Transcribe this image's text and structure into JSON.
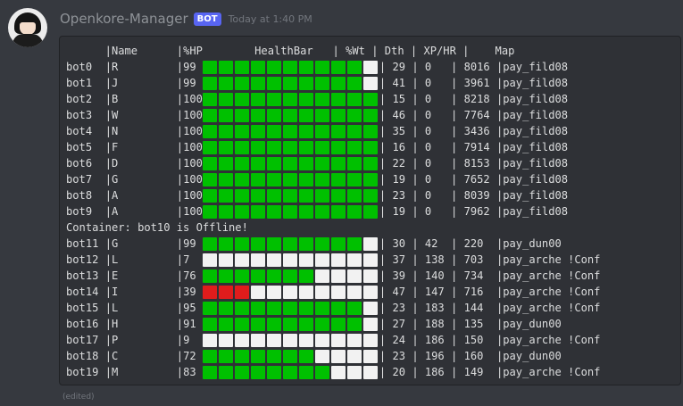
{
  "message": {
    "username": "Openkore-Manager",
    "tag": "BOT",
    "timestamp": "Today at 1:40 PM",
    "edited": "(edited)"
  },
  "colors": {
    "full": "#00c000",
    "low": "#e01c1c",
    "empty": "#f2f2f2"
  },
  "table": {
    "header": {
      "name": "Name",
      "hp": "%HP",
      "bar": "HealthBar",
      "wt": "%Wt",
      "dth": "Dth",
      "xp": "XP/HR",
      "map": "Map"
    },
    "rows": [
      {
        "type": "bot",
        "bot": "bot0",
        "name": "R",
        "hp": "99",
        "filled": 10,
        "wt": "29",
        "dth": "0",
        "xp": "8016",
        "map": "pay_fild08"
      },
      {
        "type": "bot",
        "bot": "bot1",
        "name": "J",
        "hp": "99",
        "filled": 10,
        "wt": "41",
        "dth": "0",
        "xp": "3961",
        "map": "pay_fild08"
      },
      {
        "type": "bot",
        "bot": "bot2",
        "name": "B",
        "hp": "100",
        "filled": 11,
        "wt": "15",
        "dth": "0",
        "xp": "8218",
        "map": "pay_fild08"
      },
      {
        "type": "bot",
        "bot": "bot3",
        "name": "W",
        "hp": "100",
        "filled": 11,
        "wt": "46",
        "dth": "0",
        "xp": "7764",
        "map": "pay_fild08"
      },
      {
        "type": "bot",
        "bot": "bot4",
        "name": "N",
        "hp": "100",
        "filled": 11,
        "wt": "35",
        "dth": "0",
        "xp": "3436",
        "map": "pay_fild08"
      },
      {
        "type": "bot",
        "bot": "bot5",
        "name": "F",
        "hp": "100",
        "filled": 11,
        "wt": "16",
        "dth": "0",
        "xp": "7914",
        "map": "pay_fild08"
      },
      {
        "type": "bot",
        "bot": "bot6",
        "name": "D",
        "hp": "100",
        "filled": 11,
        "wt": "22",
        "dth": "0",
        "xp": "8153",
        "map": "pay_fild08"
      },
      {
        "type": "bot",
        "bot": "bot7",
        "name": "G",
        "hp": "100",
        "filled": 11,
        "wt": "19",
        "dth": "0",
        "xp": "7652",
        "map": "pay_fild08"
      },
      {
        "type": "bot",
        "bot": "bot8",
        "name": "A",
        "hp": "100",
        "filled": 11,
        "wt": "23",
        "dth": "0",
        "xp": "8039",
        "map": "pay_fild08"
      },
      {
        "type": "bot",
        "bot": "bot9",
        "name": "A",
        "hp": "100",
        "filled": 11,
        "wt": "19",
        "dth": "0",
        "xp": "7962",
        "map": "pay_fild08"
      },
      {
        "type": "note",
        "text": "Container: bot10 is Offline!"
      },
      {
        "type": "bot",
        "bot": "bot11",
        "name": "G",
        "hp": "99",
        "filled": 10,
        "wt": "30",
        "dth": "42",
        "xp": "220",
        "map": "pay_dun00"
      },
      {
        "type": "bot",
        "bot": "bot12",
        "name": "L",
        "hp": "7",
        "filled": 0,
        "wt": "37",
        "dth": "138",
        "xp": "703",
        "map": "pay_arche !Conf"
      },
      {
        "type": "bot",
        "bot": "bot13",
        "name": "E",
        "hp": "76",
        "filled": 7,
        "wt": "39",
        "dth": "140",
        "xp": "734",
        "map": "pay_arche !Conf"
      },
      {
        "type": "bot",
        "bot": "bot14",
        "name": "I",
        "hp": "39",
        "filled": 3,
        "low": true,
        "wt": "47",
        "dth": "147",
        "xp": "716",
        "map": "pay_arche !Conf"
      },
      {
        "type": "bot",
        "bot": "bot15",
        "name": "L",
        "hp": "95",
        "filled": 10,
        "wt": "23",
        "dth": "183",
        "xp": "144",
        "map": "pay_arche !Conf"
      },
      {
        "type": "bot",
        "bot": "bot16",
        "name": "H",
        "hp": "91",
        "filled": 10,
        "wt": "27",
        "dth": "188",
        "xp": "135",
        "map": "pay_dun00"
      },
      {
        "type": "bot",
        "bot": "bot17",
        "name": "P",
        "hp": "9",
        "filled": 0,
        "wt": "24",
        "dth": "186",
        "xp": "150",
        "map": "pay_arche !Conf"
      },
      {
        "type": "bot",
        "bot": "bot18",
        "name": "C",
        "hp": "72",
        "filled": 7,
        "wt": "23",
        "dth": "196",
        "xp": "160",
        "map": "pay_dun00"
      },
      {
        "type": "bot",
        "bot": "bot19",
        "name": "M",
        "hp": "83",
        "filled": 8,
        "wt": "20",
        "dth": "186",
        "xp": "149",
        "map": "pay_arche !Conf"
      }
    ]
  }
}
